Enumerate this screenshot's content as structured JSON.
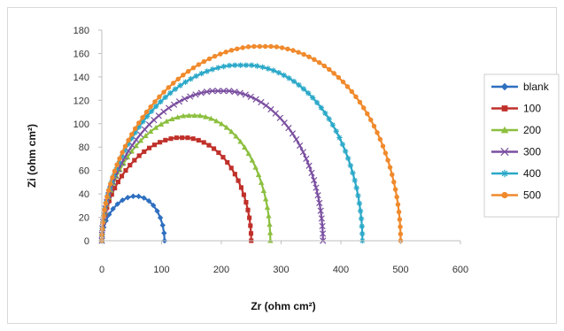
{
  "chart_data": {
    "type": "scatter",
    "title": "",
    "xlabel": "Zr (ohm cm²)",
    "ylabel": "Zi (ohm cm²)",
    "xlim": [
      0,
      600
    ],
    "ylim": [
      0,
      180
    ],
    "xticks": [
      0,
      100,
      200,
      300,
      400,
      500,
      600
    ],
    "yticks": [
      0,
      20,
      40,
      60,
      80,
      100,
      120,
      140,
      160,
      180
    ],
    "grid": false,
    "legend_position": "right",
    "series": [
      {
        "name": "blank",
        "color": "#2e6fc0",
        "marker": "diamond",
        "r_start": 0,
        "r_end": 105,
        "peak": 38
      },
      {
        "name": "100",
        "color": "#c0302a",
        "marker": "square",
        "r_start": 0,
        "r_end": 250,
        "peak": 88
      },
      {
        "name": "200",
        "color": "#8cbf3f",
        "marker": "triangle",
        "r_start": 0,
        "r_end": 282,
        "peak": 107
      },
      {
        "name": "300",
        "color": "#7a4fa0",
        "marker": "x",
        "r_start": 0,
        "r_end": 370,
        "peak": 128
      },
      {
        "name": "400",
        "color": "#2aa8c8",
        "marker": "star",
        "r_start": 0,
        "r_end": 436,
        "peak": 150
      },
      {
        "name": "500",
        "color": "#f08a2c",
        "marker": "circle",
        "r_start": 0,
        "r_end": 500,
        "peak": 166
      }
    ]
  }
}
